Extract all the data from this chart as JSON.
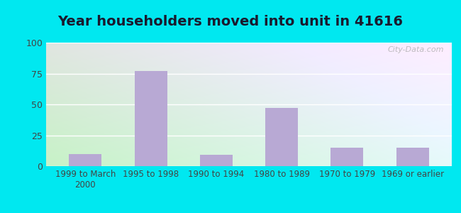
{
  "title": "Year householders moved into unit in 41616",
  "categories": [
    "1999 to March\n2000",
    "1995 to 1998",
    "1990 to 1994",
    "1980 to 1989",
    "1970 to 1979",
    "1969 or earlier"
  ],
  "values": [
    10,
    77,
    9,
    47,
    15,
    15
  ],
  "bar_color": "#b8a9d4",
  "ylim": [
    0,
    100
  ],
  "yticks": [
    0,
    25,
    50,
    75,
    100
  ],
  "background_outer": "#00e8f0",
  "background_inner_left": "#c5e8c5",
  "background_inner_right": "#e8f4f8",
  "grid_color": "#ffffff",
  "title_fontsize": 14,
  "title_color": "#1a1a2e",
  "watermark": "City-Data.com",
  "tick_color": "#444444",
  "tick_fontsize": 8.5,
  "ytick_fontsize": 9
}
